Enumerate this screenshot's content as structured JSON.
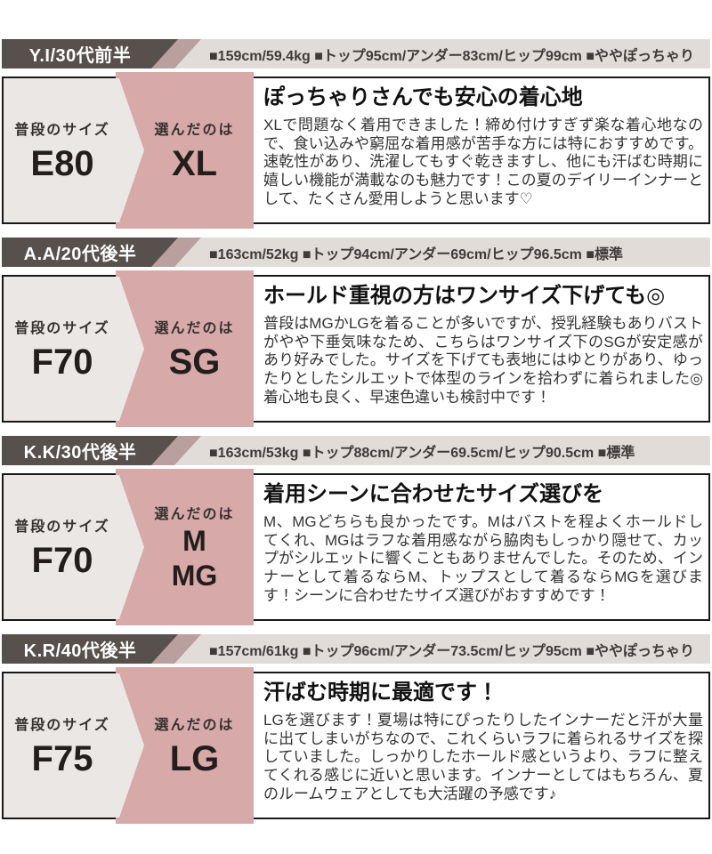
{
  "colors": {
    "header_strip": "#e2dcd9",
    "name_block": "#57504d",
    "accent_band": "#b9a09e",
    "pink_panel": "#d7a9a9",
    "gray_panel": "#eae7e4",
    "box_border": "#181818",
    "body_text": "#2b2b2b"
  },
  "labels": {
    "usual_size": "普段のサイズ",
    "chosen": "選んだのは"
  },
  "reviewers": [
    {
      "name": "Y.I/30代前半",
      "stats": "■159cm/59.4kg ■トップ95cm/アンダー83cm/ヒップ99cm ■ややぽっちゃり",
      "usual_size": "E80",
      "chosen_sizes": [
        "XL"
      ],
      "review_title": "ぽっちゃりさんでも安心の着心地",
      "review_body": "XLで問題なく着用できました！締め付けすぎず楽な着心地なので、食い込みや窮屈な着用感が苦手な方には特におすすめです。速乾性があり、洗濯してもすぐ乾きますし、他にも汗ばむ時期に嬉しい機能が満載なのも魅力です！この夏のデイリーインナーとして、たくさん愛用しようと思います♡"
    },
    {
      "name": "A.A/20代後半",
      "stats": "■163cm/52kg ■トップ94cm/アンダー69cm/ヒップ96.5cm ■標準",
      "usual_size": "F70",
      "chosen_sizes": [
        "SG"
      ],
      "review_title": "ホールド重視の方はワンサイズ下げても◎",
      "review_body": "普段はMGかLGを着ることが多いですが、授乳経験もありバストがやや下垂気味なため、こちらはワンサイズ下のSGが安定感があり好みでした。サイズを下げても表地にはゆとりがあり、ゆったりとしたシルエットで体型のラインを拾わずに着られました◎着心地も良く、早速色違いも検討中です！"
    },
    {
      "name": "K.K/30代後半",
      "stats": "■163cm/53kg ■トップ88cm/アンダー69.5cm/ヒップ90.5cm ■標準",
      "usual_size": "F70",
      "chosen_sizes": [
        "M",
        "MG"
      ],
      "review_title": "着用シーンに合わせたサイズ選びを",
      "review_body": "M、MGどちらも良かったです。Mはバストを程よくホールドしてくれ、MGはラフな着用感ながら脇肉もしっかり隠せて、カップがシルエットに響くこともありませんでした。そのため、インナーとして着るならM、トップスとして着るならMGを選びます！シーンに合わせたサイズ選びがおすすめです！"
    },
    {
      "name": "K.R/40代後半",
      "stats": "■157cm/61kg ■トップ96cm/アンダー73.5cm/ヒップ95cm ■ややぽっちゃり",
      "usual_size": "F75",
      "chosen_sizes": [
        "LG"
      ],
      "review_title": "汗ばむ時期に最適です！",
      "review_body": "LGを選びます！夏場は特にぴったりしたインナーだと汗が大量に出てしまいがちなので、これくらいラフに着られるサイズを探していました。しっかりしたホールド感というより、ラフに整えてくれる感じに近いと思います。インナーとしてはもちろん、夏のルームウェアとしても大活躍の予感です♪"
    }
  ]
}
